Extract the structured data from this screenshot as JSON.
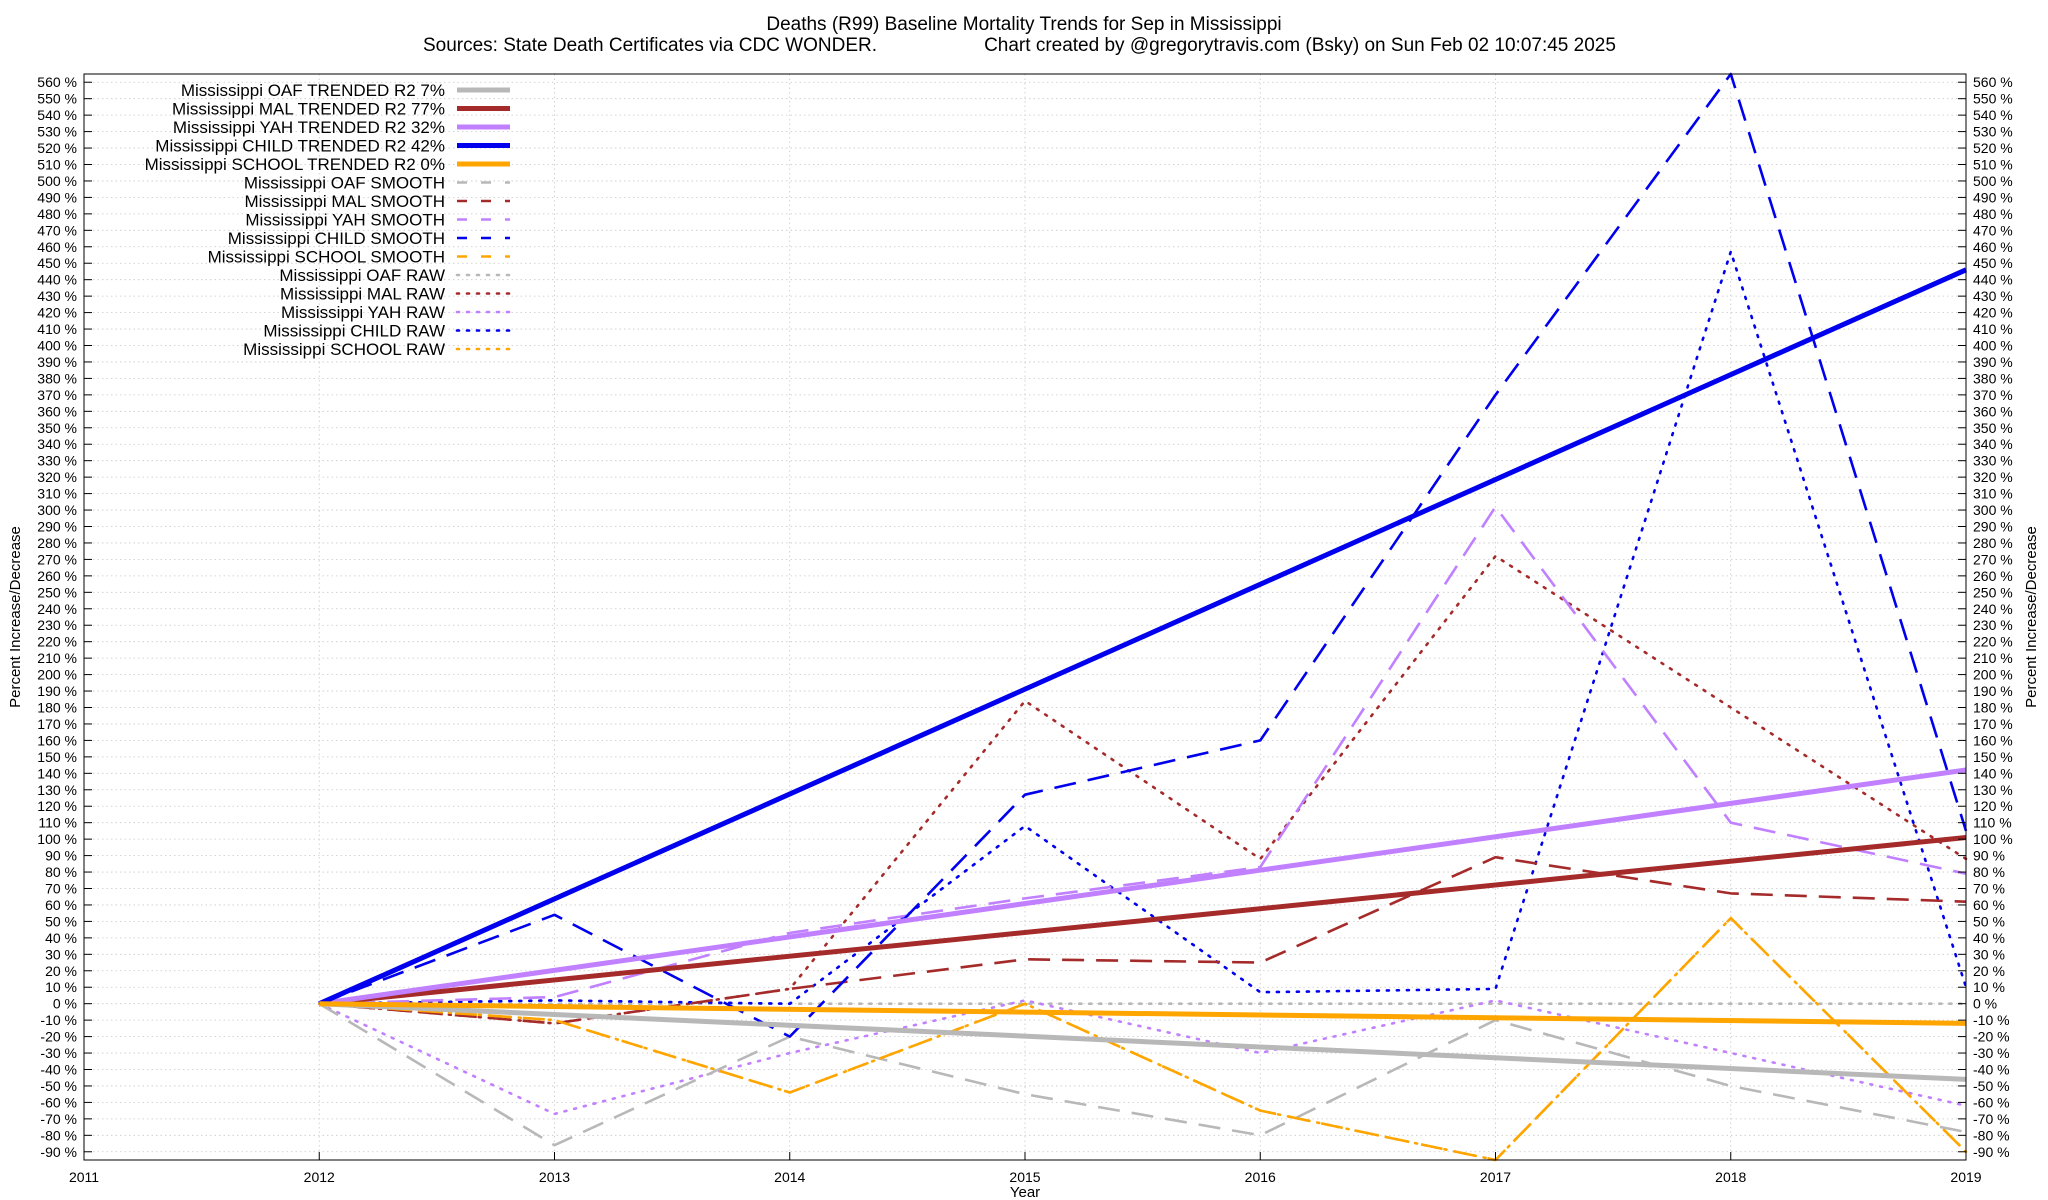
{
  "chart_data": {
    "type": "line",
    "title": "Deaths (R99)  Baseline Mortality Trends for Sep in Mississippi",
    "subtitle_left": "Sources: State Death Certificates via CDC WONDER.",
    "subtitle_right": "Chart created by @gregorytravis.com (Bsky) on Sun Feb 02 10:07:45 2025",
    "xlabel": "Year",
    "ylabel": "Percent Increase/Decrease",
    "xlim": [
      2011,
      2019
    ],
    "ylim": [
      -95,
      565
    ],
    "x_ticks": [
      "2011",
      "2012",
      "2013",
      "2014",
      "2015",
      "2016",
      "2017",
      "2018",
      "2019"
    ],
    "y_tick_values": [
      -90,
      -80,
      -70,
      -60,
      -50,
      -40,
      -30,
      -20,
      -10,
      0,
      10,
      20,
      30,
      40,
      50,
      60,
      70,
      80,
      90,
      100,
      110,
      120,
      130,
      140,
      150,
      160,
      170,
      180,
      190,
      200,
      210,
      220,
      230,
      240,
      250,
      260,
      270,
      280,
      290,
      300,
      310,
      320,
      330,
      340,
      350,
      360,
      370,
      380,
      390,
      400,
      410,
      420,
      430,
      440,
      450,
      460,
      470,
      480,
      490,
      500,
      510,
      520,
      530,
      540,
      550,
      560
    ],
    "y_tick_suffix": " %",
    "grid": true,
    "legend_position": "top-left",
    "series": [
      {
        "name": "Mississippi OAF TRENDED R2  7%",
        "style": "solid",
        "color": "#b8b8b8",
        "x": [
          2012,
          2019
        ],
        "values": [
          0,
          -46
        ]
      },
      {
        "name": "Mississippi MAL TRENDED R2  77%",
        "style": "solid",
        "color": "#a52a2a",
        "x": [
          2012,
          2019
        ],
        "values": [
          0,
          101
        ]
      },
      {
        "name": "Mississippi YAH TRENDED R2  32%",
        "style": "solid",
        "color": "#c080ff",
        "x": [
          2012,
          2019
        ],
        "values": [
          0,
          142
        ]
      },
      {
        "name": "Mississippi CHILD TRENDED R2  42%",
        "style": "solid",
        "color": "#0000ee",
        "x": [
          2012,
          2019
        ],
        "values": [
          0,
          446
        ]
      },
      {
        "name": "Mississippi SCHOOL TRENDED R2   0%",
        "style": "solid",
        "color": "#ffa500",
        "x": [
          2012,
          2019
        ],
        "values": [
          0,
          -12
        ]
      },
      {
        "name": "Mississippi OAF SMOOTH",
        "style": "dashed",
        "color": "#b8b8b8",
        "x": [
          2012,
          2013,
          2014,
          2015,
          2016,
          2017,
          2018,
          2019
        ],
        "values": [
          0,
          -86,
          -20,
          -55,
          -80,
          -10,
          -50,
          -78
        ]
      },
      {
        "name": "Mississippi MAL SMOOTH",
        "style": "dashed",
        "color": "#a52a2a",
        "x": [
          2012,
          2013,
          2014,
          2015,
          2016,
          2017,
          2018,
          2019
        ],
        "values": [
          0,
          -12,
          9,
          27,
          25,
          89,
          67,
          62
        ]
      },
      {
        "name": "Mississippi YAH SMOOTH",
        "style": "dashed",
        "color": "#c080ff",
        "x": [
          2012,
          2013,
          2014,
          2015,
          2016,
          2017,
          2018,
          2019
        ],
        "values": [
          0,
          4,
          43,
          64,
          83,
          302,
          110,
          79
        ]
      },
      {
        "name": "Mississippi CHILD SMOOTH",
        "style": "dashed",
        "color": "#0000ee",
        "x": [
          2012,
          2013,
          2014,
          2015,
          2016,
          2017,
          2018,
          2019
        ],
        "values": [
          0,
          54,
          -20,
          127,
          160,
          370,
          565,
          105
        ]
      },
      {
        "name": "Mississippi SCHOOL SMOOTH",
        "style": "dashed",
        "color": "#ffa500",
        "x": [
          2012,
          2013,
          2014,
          2015,
          2016,
          2017,
          2018,
          2019
        ],
        "values": [
          0,
          -10,
          -54,
          0,
          -65,
          -95,
          52,
          -90
        ]
      },
      {
        "name": "Mississippi OAF RAW",
        "style": "dotted",
        "color": "#b8b8b8",
        "x": [
          2012,
          2013,
          2014,
          2015,
          2016,
          2017,
          2018,
          2019
        ],
        "values": [
          0,
          0,
          0,
          0,
          0,
          0,
          0,
          0
        ]
      },
      {
        "name": "Mississippi MAL RAW",
        "style": "dotted",
        "color": "#a52a2a",
        "x": [
          2012,
          2013,
          2014,
          2015,
          2016,
          2017,
          2018,
          2019
        ],
        "values": [
          0,
          -12,
          9,
          184,
          88,
          272,
          180,
          88
        ]
      },
      {
        "name": "Mississippi YAH RAW",
        "style": "dotted",
        "color": "#c080ff",
        "x": [
          2012,
          2013,
          2014,
          2015,
          2016,
          2017,
          2018,
          2019
        ],
        "values": [
          0,
          -67,
          -30,
          2,
          -30,
          2,
          -30,
          -62
        ]
      },
      {
        "name": "Mississippi CHILD RAW",
        "style": "dotted",
        "color": "#0000ee",
        "x": [
          2012,
          2013,
          2014,
          2015,
          2016,
          2017,
          2018,
          2019
        ],
        "values": [
          0,
          2,
          0,
          108,
          7,
          9,
          457,
          10
        ]
      },
      {
        "name": "Mississippi SCHOOL RAW",
        "style": "dotted",
        "color": "#ffa500",
        "x": [
          2012,
          2013,
          2014,
          2015,
          2016,
          2017,
          2018,
          2019
        ],
        "values": [
          0,
          -10,
          -54,
          0,
          -65,
          -95,
          52,
          -90
        ]
      }
    ]
  }
}
